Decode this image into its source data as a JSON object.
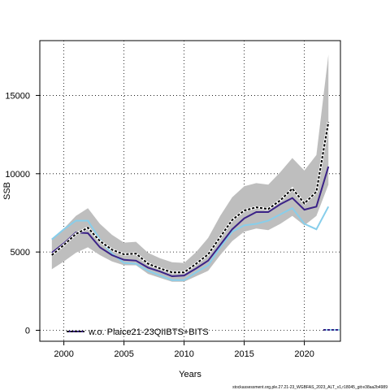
{
  "chart_data": {
    "type": "line",
    "title": "",
    "xlabel": "Years",
    "ylabel": "SSB",
    "xlim": [
      1998,
      2023
    ],
    "ylim": [
      -700,
      18500
    ],
    "grid": true,
    "x_ticks": [
      2000,
      2005,
      2010,
      2015,
      2020
    ],
    "y_ticks": [
      0,
      5000,
      10000,
      15000
    ],
    "x": [
      1999,
      2000,
      2001,
      2002,
      2003,
      2004,
      2005,
      2006,
      2007,
      2008,
      2009,
      2010,
      2011,
      2012,
      2013,
      2014,
      2015,
      2016,
      2017,
      2018,
      2019,
      2020,
      2021,
      2022
    ],
    "band": {
      "color": "#bebebe",
      "lower": [
        3900,
        4400,
        4950,
        5300,
        4800,
        4400,
        4150,
        4150,
        3600,
        3350,
        3100,
        3100,
        3450,
        3800,
        4800,
        5700,
        6300,
        6500,
        6400,
        6800,
        7300,
        6700,
        7300,
        9300
      ],
      "upper": [
        5850,
        6500,
        7300,
        7800,
        6800,
        6100,
        5600,
        5650,
        4950,
        4600,
        4350,
        4300,
        5000,
        5900,
        7300,
        8500,
        9200,
        9400,
        9300,
        10100,
        11000,
        10200,
        11200,
        17600
      ]
    },
    "series": [
      {
        "name": "",
        "style": "dashed",
        "color": "#000000",
        "values": [
          4800,
          5450,
          6150,
          6550,
          5700,
          5150,
          4850,
          4900,
          4250,
          3950,
          3700,
          3700,
          4250,
          4850,
          5950,
          7050,
          7650,
          7850,
          7750,
          8300,
          9050,
          8100,
          8850,
          13300
        ]
      },
      {
        "name": "w.o. Plaice21-23QIIBTS+BITS",
        "style": "solid",
        "color": "#3b2287",
        "values": [
          4950,
          5550,
          6250,
          6200,
          5300,
          4800,
          4500,
          4450,
          4000,
          3750,
          3450,
          3500,
          3950,
          4450,
          5450,
          6450,
          7150,
          7550,
          7550,
          8050,
          8450,
          7700,
          7900,
          10450
        ]
      },
      {
        "name": "",
        "style": "solid",
        "color": "#87ceeb",
        "values": [
          5800,
          6450,
          7000,
          7000,
          5800,
          4900,
          4300,
          4250,
          3800,
          3500,
          3200,
          3200,
          3700,
          4150,
          5300,
          6300,
          6700,
          6800,
          7000,
          7400,
          7800,
          6800,
          6450,
          7900
        ]
      }
    ],
    "legend": {
      "position": "bottom-left",
      "entries": [
        "w.o. Plaice21-23QIIBTS+BITS"
      ]
    }
  },
  "footer": {
    "text": "stockassessment.org,ple.27.21-23_WGBFAS_2023_ALT_v1,r18045_git:e38aa2b4989"
  }
}
